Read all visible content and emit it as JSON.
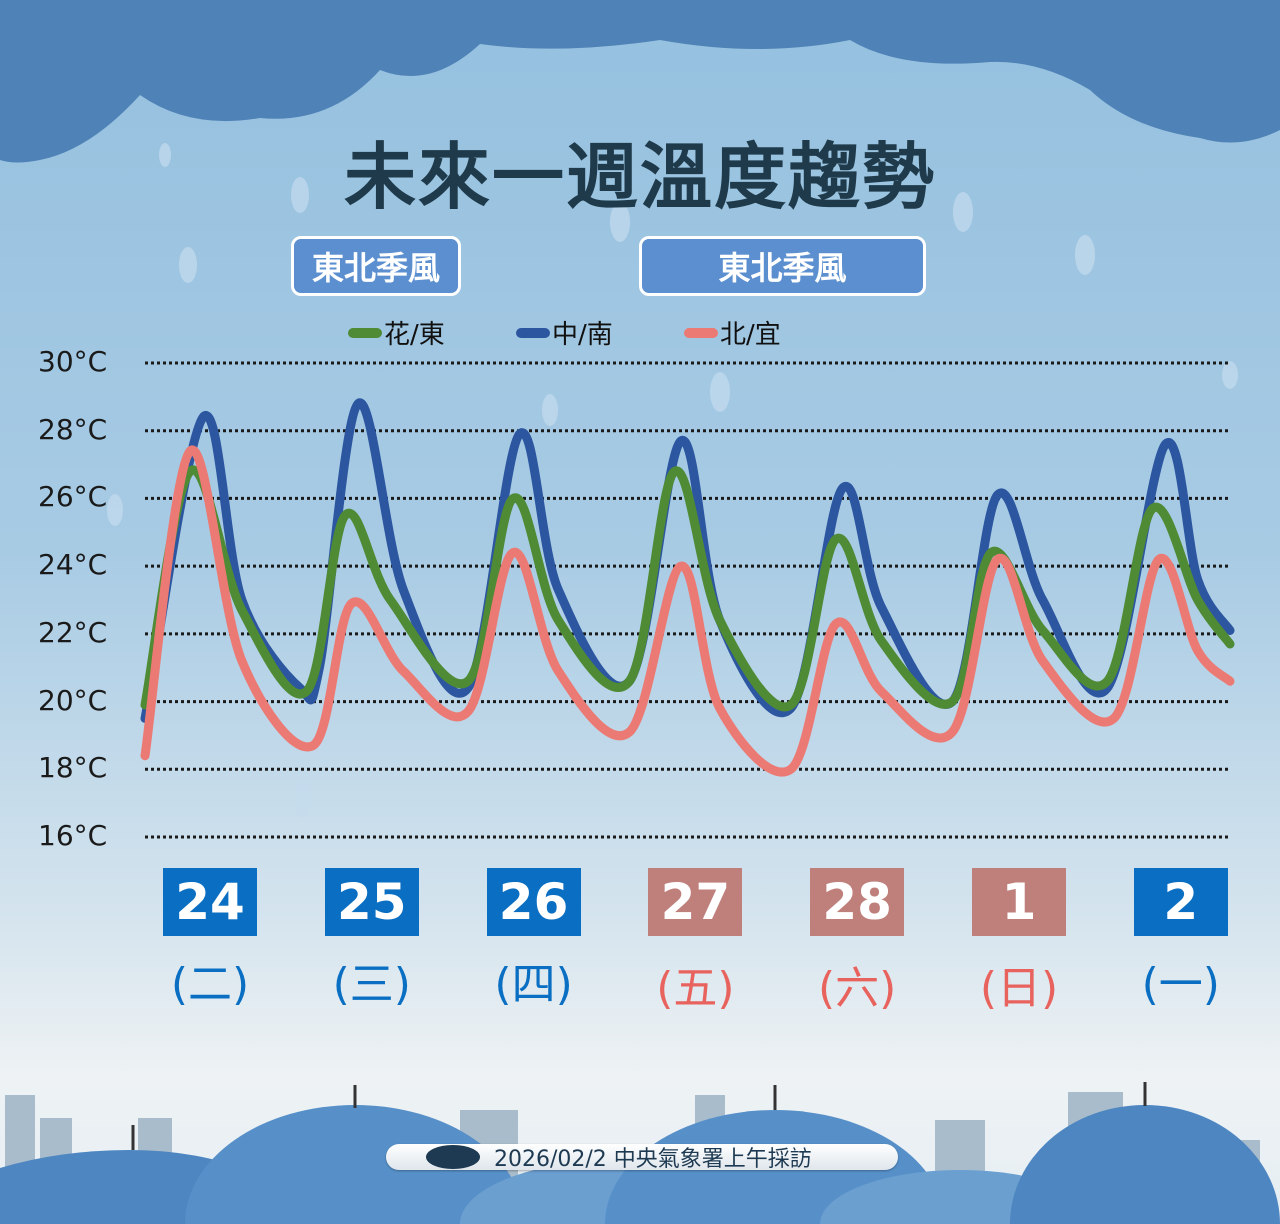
{
  "title": "未來一週溫度趨勢",
  "phases": [
    "東北季風",
    "東北季風"
  ],
  "footer": {
    "text": "2026/02/2 中央氣象署上午採訪",
    "logo": "cwa-logo"
  },
  "colors": {
    "green": "#4f8a34",
    "blue": "#2c56a0",
    "red": "#ec7a74",
    "weekday_box": "#0a6fc2",
    "weekend_box": "#bf807c",
    "weekday_text": "#0a6fc2",
    "weekend_text": "#e8635d"
  },
  "chart_data": {
    "type": "line",
    "title": "未來一週溫度趨勢",
    "ylim": [
      16,
      30
    ],
    "yticks": [
      "30°C",
      "28°C",
      "26°C",
      "24°C",
      "22°C",
      "20°C",
      "18°C",
      "16°C"
    ],
    "ytick_values": [
      30,
      28,
      26,
      24,
      22,
      20,
      18,
      16
    ],
    "grid": "horizontal dotted",
    "legend_placement": "top",
    "days": [
      {
        "date": "24",
        "weekday": "(二)",
        "weekend": false
      },
      {
        "date": "25",
        "weekday": "(三)",
        "weekend": false
      },
      {
        "date": "26",
        "weekday": "(四)",
        "weekend": false
      },
      {
        "date": "27",
        "weekday": "(五)",
        "weekend": true
      },
      {
        "date": "28",
        "weekday": "(六)",
        "weekend": true
      },
      {
        "date": "1",
        "weekday": "(日)",
        "weekend": true
      },
      {
        "date": "2",
        "weekday": "(一)",
        "weekend": false
      }
    ],
    "series": [
      {
        "name": "花/東",
        "color": "#4f8a34",
        "points": [
          [
            "24 00",
            19.9
          ],
          [
            "24 07",
            26.8
          ],
          [
            "24 15",
            22.7
          ],
          [
            "25 01",
            20.3
          ],
          [
            "25 07",
            25.5
          ],
          [
            "25 14",
            23.0
          ],
          [
            "26 02",
            20.6
          ],
          [
            "26 09",
            26.0
          ],
          [
            "26 16",
            22.4
          ],
          [
            "27 03",
            20.6
          ],
          [
            "27 10",
            26.8
          ],
          [
            "27 17",
            22.4
          ],
          [
            "28 04",
            19.9
          ],
          [
            "28 11",
            24.8
          ],
          [
            "28 18",
            21.8
          ],
          [
            "1 05",
            20.0
          ],
          [
            "1 11",
            24.4
          ],
          [
            "1 19",
            22.1
          ],
          [
            "2 05",
            20.6
          ],
          [
            "2 12",
            25.7
          ],
          [
            "2 19",
            23.0
          ],
          [
            "3 00",
            21.7
          ]
        ]
      },
      {
        "name": "中/南",
        "color": "#2c56a0",
        "points": [
          [
            "24 00",
            19.5
          ],
          [
            "24 09",
            28.4
          ],
          [
            "24 15",
            23.0
          ],
          [
            "25 00",
            20.4
          ],
          [
            "25 03",
            21.0
          ],
          [
            "25 09",
            28.8
          ],
          [
            "25 16",
            23.3
          ],
          [
            "26 02",
            20.4
          ],
          [
            "26 10",
            27.9
          ],
          [
            "26 16",
            23.3
          ],
          [
            "27 03",
            20.6
          ],
          [
            "27 11",
            27.7
          ],
          [
            "27 17",
            22.4
          ],
          [
            "28 04",
            19.8
          ],
          [
            "28 12",
            26.3
          ],
          [
            "28 18",
            22.8
          ],
          [
            "1 05",
            20.0
          ],
          [
            "1 12",
            26.1
          ],
          [
            "1 19",
            23.0
          ],
          [
            "2 05",
            20.4
          ],
          [
            "2 14",
            27.6
          ],
          [
            "2 19",
            23.6
          ],
          [
            "3 00",
            22.1
          ]
        ]
      },
      {
        "name": "北/宜",
        "color": "#ec7a74",
        "points": [
          [
            "24 00",
            18.4
          ],
          [
            "24 07",
            27.4
          ],
          [
            "24 15",
            21.2
          ],
          [
            "25 02",
            18.7
          ],
          [
            "25 08",
            22.9
          ],
          [
            "25 16",
            20.9
          ],
          [
            "26 02",
            19.7
          ],
          [
            "26 09",
            24.4
          ],
          [
            "26 16",
            20.9
          ],
          [
            "27 03",
            19.1
          ],
          [
            "27 11",
            24.0
          ],
          [
            "27 17",
            19.8
          ],
          [
            "28 04",
            18.0
          ],
          [
            "28 11",
            22.3
          ],
          [
            "28 18",
            20.3
          ],
          [
            "1 05",
            19.1
          ],
          [
            "1 12",
            24.2
          ],
          [
            "1 19",
            21.2
          ],
          [
            "2 06",
            19.5
          ],
          [
            "2 13",
            24.2
          ],
          [
            "2 19",
            21.5
          ],
          [
            "3 00",
            20.6
          ]
        ]
      }
    ]
  }
}
